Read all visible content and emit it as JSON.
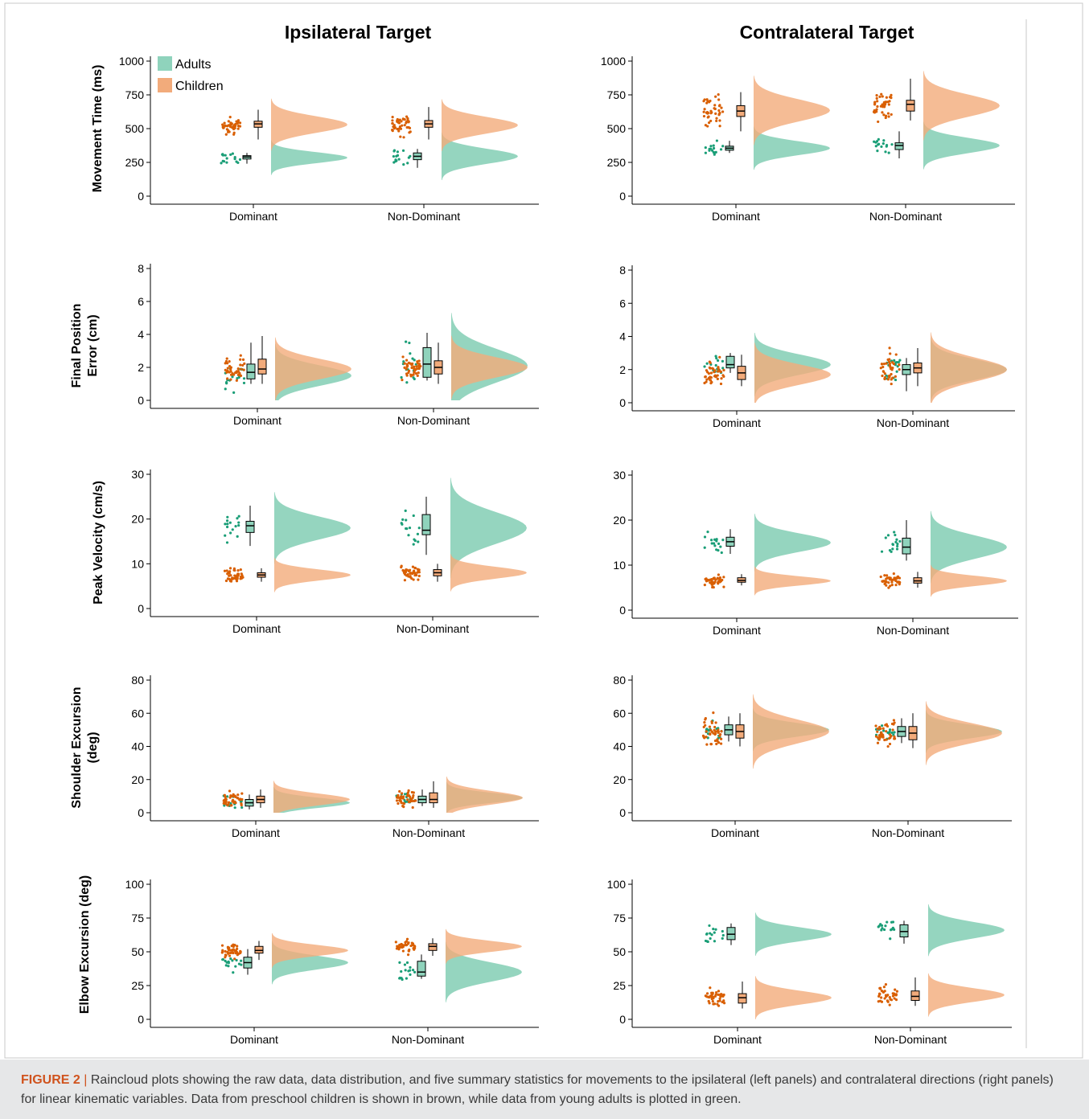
{
  "figure": {
    "column_titles": [
      "Ipsilateral Target",
      "Contralateral Target"
    ],
    "legend": {
      "adults": "Adults",
      "children": "Children"
    },
    "colors": {
      "adults": "#1a9e77",
      "adults_fill": "#8fd3bc",
      "children": "#d95f02",
      "children_fill": "#f2ab7b"
    },
    "caption_label": "FIGURE 2",
    "caption_sep": "|",
    "caption_text": "Raincloud plots showing the raw data, data distribution, and five summary statistics for movements to the ipsilateral (left panels) and contralateral directions (right panels) for linear kinematic variables. Data from preschool children is shown in brown, while data from young adults is plotted in green."
  },
  "chart_data": [
    {
      "type": "raincloud",
      "id": "mt_ipsi",
      "ylabel": "Movement Time (ms)",
      "ylim": [
        0,
        1000
      ],
      "yticks": [
        0,
        250,
        500,
        750,
        1000
      ],
      "categories": [
        "Dominant",
        "Non-Dominant"
      ],
      "groups": [
        {
          "adults": {
            "mean": 285,
            "sd": 40,
            "box": [
              240,
              275,
              290,
              300,
              320
            ]
          },
          "children": {
            "mean": 530,
            "sd": 60,
            "box": [
              420,
              510,
              535,
              555,
              640
            ]
          }
        },
        {
          "adults": {
            "mean": 295,
            "sd": 55,
            "box": [
              210,
              270,
              295,
              320,
              350
            ]
          },
          "children": {
            "mean": 525,
            "sd": 60,
            "box": [
              420,
              510,
              535,
              560,
              660
            ]
          }
        }
      ]
    },
    {
      "type": "raincloud",
      "id": "mt_contra",
      "ylabel": "",
      "ylim": [
        0,
        1000
      ],
      "yticks": [
        0,
        250,
        500,
        750,
        1000
      ],
      "categories": [
        "Dominant",
        "Non-Dominant"
      ],
      "groups": [
        {
          "adults": {
            "mean": 355,
            "sd": 50,
            "box": [
              320,
              340,
              355,
              370,
              410
            ]
          },
          "children": {
            "mean": 635,
            "sd": 80,
            "box": [
              480,
              590,
              630,
              670,
              770
            ]
          }
        },
        {
          "adults": {
            "mean": 375,
            "sd": 55,
            "box": [
              280,
              345,
              375,
              395,
              480
            ]
          },
          "children": {
            "mean": 670,
            "sd": 80,
            "box": [
              560,
              630,
              680,
              710,
              870
            ]
          }
        }
      ]
    },
    {
      "type": "raincloud",
      "id": "fpe_ipsi",
      "ylabel": "Final Position Error (cm)",
      "ylim": [
        0,
        8
      ],
      "yticks": [
        0,
        2,
        4,
        6,
        8
      ],
      "categories": [
        "Dominant",
        "Non-Dominant"
      ],
      "groups": [
        {
          "adults": {
            "mean": 1.5,
            "sd": 0.6,
            "box": [
              1.0,
              1.3,
              1.7,
              2.2,
              3.5
            ]
          },
          "children": {
            "mean": 1.9,
            "sd": 0.6,
            "box": [
              1.0,
              1.6,
              1.9,
              2.5,
              3.9
            ]
          }
        },
        {
          "adults": {
            "mean": 2.1,
            "sd": 1.0,
            "box": [
              1.2,
              1.4,
              2.2,
              3.2,
              4.1
            ]
          },
          "children": {
            "mean": 2.0,
            "sd": 0.6,
            "box": [
              1.0,
              1.6,
              2.0,
              2.4,
              3.5
            ]
          }
        }
      ]
    },
    {
      "type": "raincloud",
      "id": "fpe_contra",
      "ylabel": "",
      "ylim": [
        0,
        8
      ],
      "yticks": [
        0,
        2,
        4,
        6,
        8
      ],
      "categories": [
        "Dominant",
        "Non-Dominant"
      ],
      "groups": [
        {
          "adults": {
            "mean": 2.3,
            "sd": 0.6,
            "box": [
              1.8,
              2.1,
              2.3,
              2.8,
              3.0
            ]
          },
          "children": {
            "mean": 1.7,
            "sd": 0.6,
            "box": [
              1.0,
              1.4,
              1.8,
              2.2,
              2.9
            ]
          }
        },
        {
          "adults": {
            "mean": 2.0,
            "sd": 0.6,
            "box": [
              0.7,
              1.7,
              2.0,
              2.3,
              2.7
            ]
          },
          "children": {
            "mean": 2.0,
            "sd": 0.7,
            "box": [
              1.0,
              1.8,
              2.1,
              2.4,
              3.3
            ]
          }
        }
      ]
    },
    {
      "type": "raincloud",
      "id": "pv_ipsi",
      "ylabel": "Peak Velocity (cm/s)",
      "ylim": [
        0,
        30
      ],
      "yticks": [
        0,
        10,
        20,
        30
      ],
      "categories": [
        "Dominant",
        "Non-Dominant"
      ],
      "groups": [
        {
          "adults": {
            "mean": 18,
            "sd": 2.5,
            "box": [
              14,
              17,
              18.5,
              19.5,
              23
            ]
          },
          "children": {
            "mean": 7.5,
            "sd": 1.2,
            "box": [
              6,
              7,
              7.5,
              8,
              9
            ]
          }
        },
        {
          "adults": {
            "mean": 18,
            "sd": 3.5,
            "box": [
              12,
              16.5,
              17.5,
              21,
              25
            ]
          },
          "children": {
            "mean": 8,
            "sd": 1.3,
            "box": [
              6,
              7.3,
              8,
              8.7,
              10
            ]
          }
        }
      ]
    },
    {
      "type": "raincloud",
      "id": "pv_contra",
      "ylabel": "",
      "ylim": [
        0,
        30
      ],
      "yticks": [
        0,
        10,
        20,
        30
      ],
      "categories": [
        "Dominant",
        "Non-Dominant"
      ],
      "groups": [
        {
          "adults": {
            "mean": 15,
            "sd": 2.0,
            "box": [
              12.5,
              14.2,
              15.2,
              16.2,
              18
            ]
          },
          "children": {
            "mean": 6.5,
            "sd": 1.0,
            "box": [
              5.5,
              6.2,
              6.6,
              7.2,
              8
            ]
          }
        },
        {
          "adults": {
            "mean": 14,
            "sd": 2.5,
            "box": [
              11,
              12.5,
              14,
              16,
              20
            ]
          },
          "children": {
            "mean": 6.5,
            "sd": 1.1,
            "box": [
              5,
              6,
              6.5,
              7.2,
              8.5
            ]
          }
        }
      ]
    },
    {
      "type": "raincloud",
      "id": "se_ipsi",
      "ylabel": "Shoulder Excursion (deg)",
      "ylim": [
        0,
        80
      ],
      "yticks": [
        0,
        20,
        40,
        60,
        80
      ],
      "categories": [
        "Dominant",
        "Non-Dominant"
      ],
      "groups": [
        {
          "adults": {
            "mean": 6,
            "sd": 3,
            "box": [
              2,
              4,
              6,
              8,
              11
            ]
          },
          "children": {
            "mean": 8,
            "sd": 3.5,
            "box": [
              3,
              6,
              8,
              10,
              14
            ]
          }
        },
        {
          "adults": {
            "mean": 9,
            "sd": 3,
            "box": [
              4,
              6,
              8,
              10,
              14
            ]
          },
          "children": {
            "mean": 9,
            "sd": 4,
            "box": [
              3,
              6,
              8,
              12,
              19
            ]
          }
        }
      ]
    },
    {
      "type": "raincloud",
      "id": "se_contra",
      "ylabel": "",
      "ylim": [
        0,
        80
      ],
      "yticks": [
        0,
        20,
        40,
        60,
        80
      ],
      "categories": [
        "Dominant",
        "Non-Dominant"
      ],
      "groups": [
        {
          "adults": {
            "mean": 50,
            "sd": 4,
            "box": [
              43,
              47,
              50,
              53,
              58
            ]
          },
          "children": {
            "mean": 49,
            "sd": 7,
            "box": [
              40,
              45,
              49,
              53,
              60
            ]
          }
        },
        {
          "adults": {
            "mean": 49,
            "sd": 4,
            "box": [
              42,
              46,
              49,
              52,
              57
            ]
          },
          "children": {
            "mean": 48,
            "sd": 6,
            "box": [
              39,
              44,
              48,
              52,
              60
            ]
          }
        }
      ]
    },
    {
      "type": "raincloud",
      "id": "ee_ipsi",
      "ylabel": "Elbow Excursion (deg)",
      "ylim": [
        0,
        100
      ],
      "yticks": [
        0,
        25,
        50,
        75,
        100
      ],
      "categories": [
        "Dominant",
        "Non-Dominant"
      ],
      "groups": [
        {
          "adults": {
            "mean": 42,
            "sd": 5,
            "box": [
              33,
              38,
              42,
              46,
              52
            ]
          },
          "children": {
            "mean": 51,
            "sd": 4,
            "box": [
              44,
              49,
              51,
              54,
              58
            ]
          }
        },
        {
          "adults": {
            "mean": 35,
            "sd": 7,
            "box": [
              30,
              32,
              35,
              43,
              48
            ]
          },
          "children": {
            "mean": 54,
            "sd": 4,
            "box": [
              47,
              51,
              54,
              56,
              60
            ]
          }
        }
      ]
    },
    {
      "type": "raincloud",
      "id": "ee_contra",
      "ylabel": "",
      "ylim": [
        0,
        100
      ],
      "yticks": [
        0,
        25,
        50,
        75,
        100
      ],
      "categories": [
        "Dominant",
        "Non-Dominant"
      ],
      "groups": [
        {
          "adults": {
            "mean": 63,
            "sd": 5,
            "box": [
              55,
              59,
              63,
              68,
              71
            ]
          },
          "children": {
            "mean": 16,
            "sd": 5,
            "box": [
              8,
              12,
              16,
              19,
              28
            ]
          }
        },
        {
          "adults": {
            "mean": 66,
            "sd": 6,
            "box": [
              56,
              61,
              65,
              70,
              73
            ]
          },
          "children": {
            "mean": 18,
            "sd": 5,
            "box": [
              10,
              14,
              17,
              21,
              31
            ]
          }
        }
      ]
    }
  ]
}
